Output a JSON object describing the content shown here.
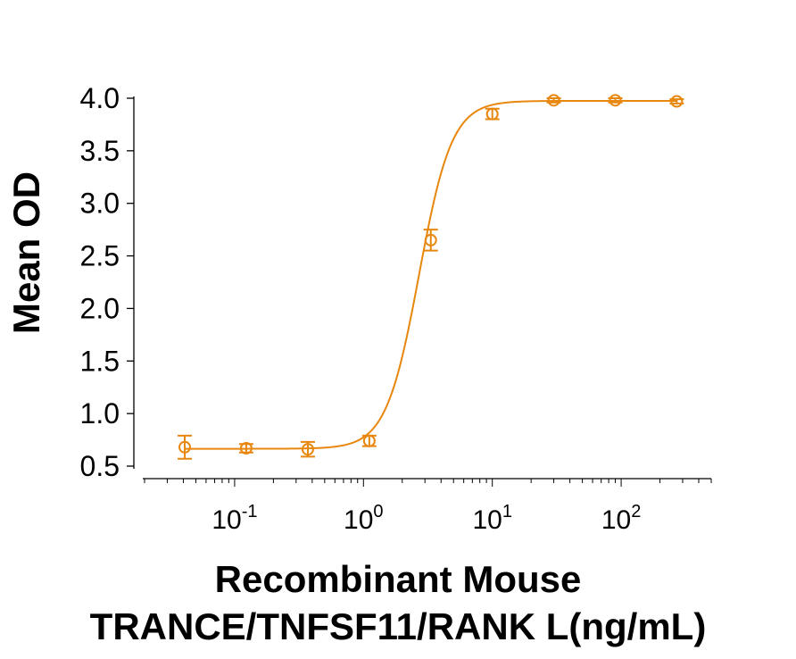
{
  "chart_data": {
    "type": "scatter",
    "xscale": "log",
    "xlim": [
      0.02,
      500
    ],
    "ylim": [
      0.45,
      4.1
    ],
    "xticks": [
      {
        "value": 0.1,
        "base": "10",
        "exp": "-1"
      },
      {
        "value": 1,
        "base": "10",
        "exp": "0"
      },
      {
        "value": 10,
        "base": "10",
        "exp": "1"
      },
      {
        "value": 100,
        "base": "10",
        "exp": "2"
      }
    ],
    "yticks": [
      "0.5",
      "1.0",
      "1.5",
      "2.0",
      "2.5",
      "3.0",
      "3.5",
      "4.0"
    ],
    "xlabel_line1": "Recombinant Mouse",
    "xlabel_line2": "TRANCE/TNFSF11/RANK L(ng/mL)",
    "ylabel": "Mean OD",
    "grid": false,
    "color": "#E8870E",
    "points": [
      {
        "x": 0.041,
        "y": 0.68,
        "err": 0.11
      },
      {
        "x": 0.123,
        "y": 0.67,
        "err": 0.04
      },
      {
        "x": 0.37,
        "y": 0.66,
        "err": 0.07
      },
      {
        "x": 1.11,
        "y": 0.74,
        "err": 0.05
      },
      {
        "x": 3.33,
        "y": 2.65,
        "err": 0.1
      },
      {
        "x": 10,
        "y": 3.85,
        "err": 0.05
      },
      {
        "x": 30,
        "y": 3.98,
        "err": 0.02
      },
      {
        "x": 90,
        "y": 3.98,
        "err": 0.02
      },
      {
        "x": 270,
        "y": 3.97,
        "err": 0.02
      }
    ],
    "fit": {
      "bottom": 0.665,
      "top": 3.975,
      "ec50": 2.7,
      "hill": 3.4
    }
  }
}
